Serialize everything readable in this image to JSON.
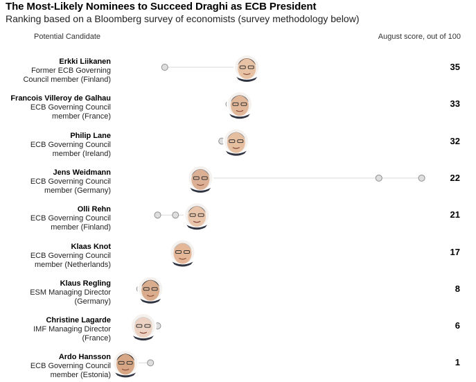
{
  "title": "The Most-Likely Nominees to Succeed Draghi as ECB President",
  "subtitle": "Ranking based on a Bloomberg survey of economists (survey methodology below)",
  "header": {
    "left": "Potential Candidate",
    "right": "August score, out of 100"
  },
  "colors": {
    "line": "#d9d9d9",
    "dot_fill": "#dedede",
    "dot_stroke": "#8f8f8f"
  },
  "chart_data": {
    "type": "dot-range",
    "series_note": "earlier survey scores shown as grey dots; current (August) score shown by portrait",
    "candidates": [
      {
        "name": "Erkki Liikanen",
        "role_lines": [
          "Former ECB Governing",
          "Council member (Finland)"
        ],
        "score": 35,
        "earlier": [
          12,
          34
        ]
      },
      {
        "name": "Francois Villeroy de Galhau",
        "role_lines": [
          "ECB Governing Council",
          "member (France)"
        ],
        "score": 33,
        "earlier": [
          30,
          32
        ]
      },
      {
        "name": "Philip Lane",
        "role_lines": [
          "ECB Governing Council",
          "member (Ireland)"
        ],
        "score": 32,
        "earlier": [
          28,
          30
        ]
      },
      {
        "name": "Jens Weidmann",
        "role_lines": [
          "ECB Governing Council",
          "member (Germany)"
        ],
        "score": 22,
        "earlier": [
          72,
          84
        ]
      },
      {
        "name": "Olli Rehn",
        "role_lines": [
          "ECB Governing Council",
          "member (Finland)"
        ],
        "score": 21,
        "earlier": [
          10,
          15
        ]
      },
      {
        "name": "Klaas Knot",
        "role_lines": [
          "ECB Governing Council",
          "member (Netherlands)"
        ],
        "score": 17,
        "earlier": [
          15
        ]
      },
      {
        "name": "Klaus Regling",
        "role_lines": [
          "ESM Managing Director",
          "(Germany)"
        ],
        "score": 8,
        "earlier": [
          5
        ]
      },
      {
        "name": "Christine Lagarde",
        "role_lines": [
          "IMF Managing Director",
          "(France)"
        ],
        "score": 6,
        "earlier": [
          10
        ]
      },
      {
        "name": "Ardo Hansson",
        "role_lines": [
          "ECB Governing Council",
          "member (Estonia)"
        ],
        "score": 1,
        "earlier": [
          8
        ]
      }
    ]
  }
}
